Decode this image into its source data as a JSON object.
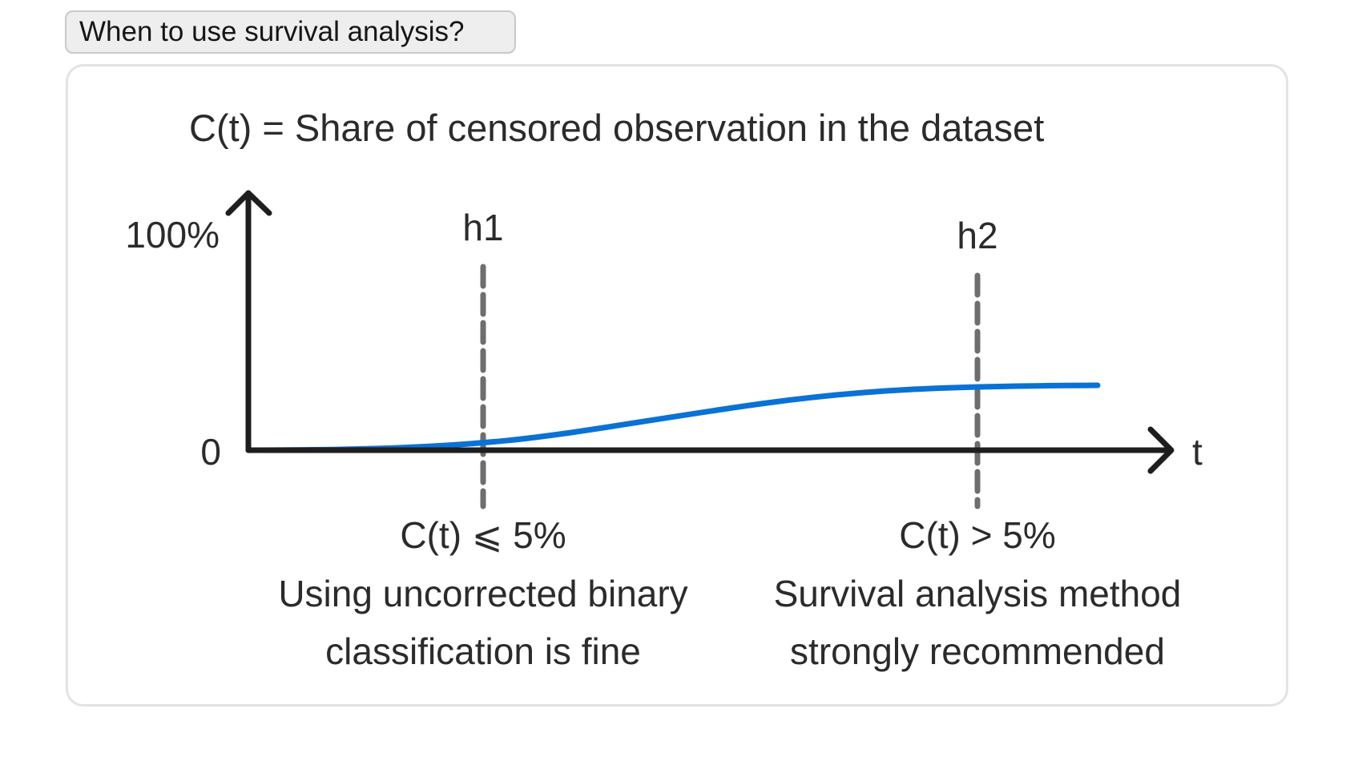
{
  "header": {
    "tag_label": "When to use survival analysis?"
  },
  "diagram": {
    "title": "C(t) = Share of censored observation in the dataset",
    "y_axis_top_label": "100%",
    "y_axis_zero_label": "0",
    "x_axis_label": "t",
    "thresholds": [
      {
        "label": "h1",
        "condition": "C(t) ⩽ 5%",
        "advice_line1": "Using uncorrected binary",
        "advice_line2": "classification is fine"
      },
      {
        "label": "h2",
        "condition": "C(t) > 5%",
        "advice_line1": "Survival analysis method",
        "advice_line2": "strongly recommended"
      }
    ],
    "colors": {
      "curve": "#0a72d6",
      "axis": "#1e1e1e",
      "threshold_line": "#6e6e6e",
      "text": "#2b2b2b"
    }
  }
}
